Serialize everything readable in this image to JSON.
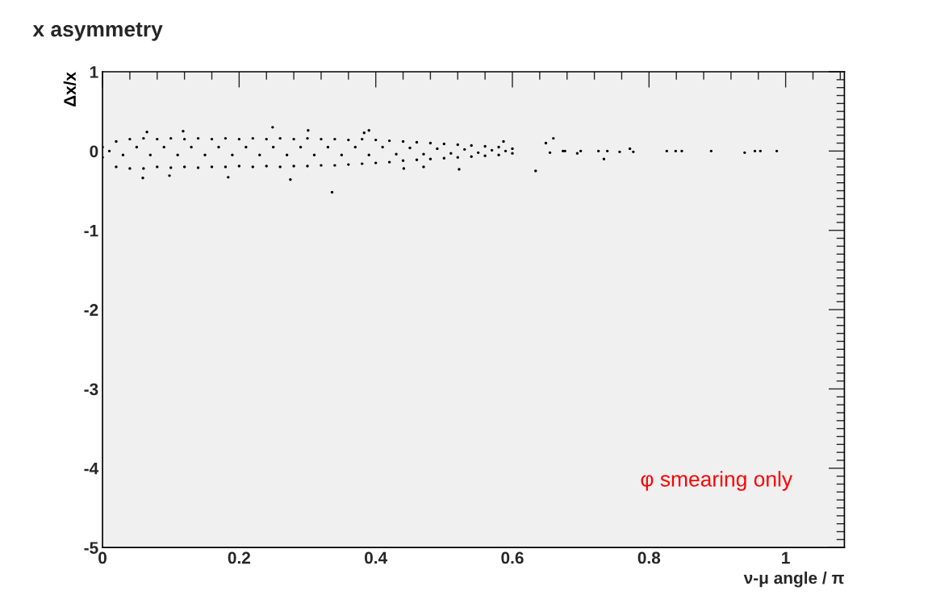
{
  "chart_data": {
    "type": "scatter",
    "title": "x asymmetry",
    "xlabel": "ν-μ angle / π",
    "ylabel": "Δx/x",
    "xlim": [
      0,
      1.086
    ],
    "xticks": [
      0,
      0.2,
      0.4,
      0.6,
      0.8,
      1
    ],
    "ylim": [
      -5,
      1
    ],
    "yticks": [
      -5,
      -4,
      -3,
      -2,
      -1,
      0,
      1
    ],
    "grid": false,
    "legend": false,
    "marker": "circle",
    "annotations": [
      "φ smearing only"
    ],
    "series": [
      {
        "color": "#000000",
        "x": [
          0.0,
          0.02,
          0.04,
          0.06,
          0.08,
          0.1,
          0.12,
          0.14,
          0.16,
          0.18,
          0.2,
          0.22,
          0.24,
          0.26,
          0.28,
          0.3,
          0.32,
          0.34,
          0.36,
          0.38,
          0.4,
          0.42,
          0.44,
          0.46,
          0.48,
          0.5,
          0.52,
          0.54,
          0.56,
          0.58,
          0.6,
          0.0,
          0.02,
          0.04,
          0.06,
          0.08,
          0.1,
          0.12,
          0.14,
          0.16,
          0.18,
          0.2,
          0.22,
          0.24,
          0.26,
          0.28,
          0.3,
          0.32,
          0.34,
          0.36,
          0.38,
          0.4,
          0.42,
          0.44,
          0.46,
          0.48,
          0.5,
          0.52,
          0.54,
          0.56,
          0.58,
          0.6,
          0.01,
          0.03,
          0.05,
          0.07,
          0.09,
          0.11,
          0.13,
          0.15,
          0.17,
          0.19,
          0.21,
          0.23,
          0.25,
          0.27,
          0.29,
          0.31,
          0.33,
          0.35,
          0.37,
          0.39,
          0.41,
          0.43,
          0.45,
          0.47,
          0.49,
          0.51,
          0.53,
          0.55,
          0.57,
          0.59,
          0.249,
          0.336,
          0.065,
          0.301,
          0.118,
          0.059,
          0.184,
          0.275,
          0.098,
          0.39,
          0.383,
          0.441,
          0.47,
          0.522,
          0.587,
          0.634,
          0.66,
          0.649,
          0.655,
          0.674,
          0.677,
          0.695,
          0.7,
          0.726,
          0.734,
          0.739,
          0.757,
          0.772,
          0.777,
          0.826,
          0.839,
          0.848,
          0.891,
          0.94,
          0.955,
          0.963,
          0.987
        ],
        "values": [
          0.05,
          0.12,
          0.15,
          0.16,
          0.15,
          0.16,
          0.15,
          0.16,
          0.15,
          0.16,
          0.15,
          0.16,
          0.15,
          0.16,
          0.15,
          0.16,
          0.15,
          0.15,
          0.14,
          0.15,
          0.14,
          0.13,
          0.12,
          0.11,
          0.1,
          0.09,
          0.08,
          0.07,
          0.06,
          0.05,
          0.03,
          -0.08,
          -0.2,
          -0.22,
          -0.22,
          -0.2,
          -0.21,
          -0.2,
          -0.21,
          -0.2,
          -0.2,
          -0.19,
          -0.2,
          -0.19,
          -0.2,
          -0.19,
          -0.19,
          -0.18,
          -0.18,
          -0.17,
          -0.16,
          -0.15,
          -0.14,
          -0.12,
          -0.11,
          -0.1,
          -0.09,
          -0.08,
          -0.07,
          -0.06,
          -0.05,
          -0.03,
          0.0,
          -0.05,
          0.05,
          -0.05,
          0.05,
          -0.05,
          0.05,
          -0.05,
          0.05,
          -0.05,
          0.05,
          -0.05,
          0.05,
          -0.05,
          0.05,
          -0.05,
          0.05,
          -0.05,
          0.05,
          -0.05,
          0.05,
          -0.04,
          0.04,
          -0.04,
          0.03,
          -0.03,
          0.02,
          -0.02,
          0.01,
          0.0,
          0.3,
          -0.52,
          0.24,
          0.26,
          0.25,
          -0.34,
          -0.33,
          -0.36,
          -0.31,
          0.26,
          0.23,
          -0.22,
          -0.2,
          -0.23,
          0.12,
          -0.25,
          0.16,
          0.1,
          -0.02,
          0.0,
          0.0,
          -0.03,
          0.0,
          0.0,
          -0.1,
          0.0,
          -0.01,
          0.03,
          -0.01,
          0.0,
          0.0,
          0.0,
          0.0,
          -0.02,
          0.0,
          0.0,
          0.0
        ]
      }
    ]
  }
}
